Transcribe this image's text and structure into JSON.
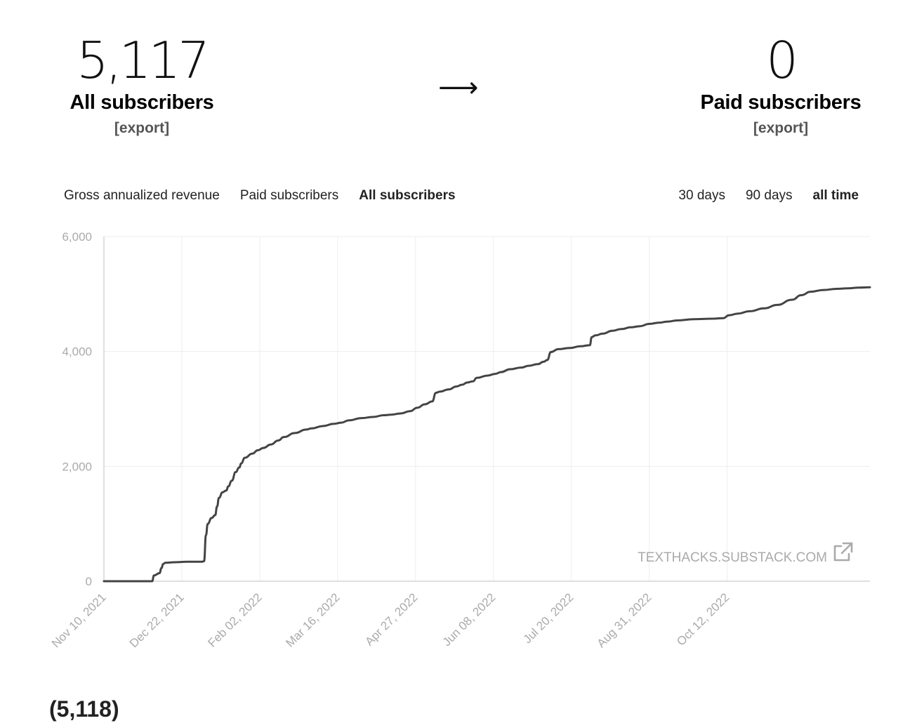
{
  "stats": {
    "all": {
      "value": "5,117",
      "label": "All subscribers",
      "export": "[export]"
    },
    "arrow": "⟶",
    "paid": {
      "value": "0",
      "label": "Paid subscribers",
      "export": "[export]"
    }
  },
  "metric_tabs": [
    "Gross annualized revenue",
    "Paid subscribers",
    "All subscribers"
  ],
  "active_metric": "All subscribers",
  "range_tabs": [
    "30 days",
    "90 days",
    "all time"
  ],
  "active_range": "all time",
  "watermark": "TEXTHACKS.SUBSTACK.COM",
  "watermark_icon": "external-link-icon",
  "footer_partial": "(5,118)",
  "colors": {
    "line": "#444444",
    "grid": "#eeeeee",
    "axis": "#cccccc",
    "tick": "#aaaaaa",
    "watermark": "#aaaaaa"
  },
  "chart_data": {
    "type": "line",
    "title": "",
    "xlabel": "",
    "ylabel": "",
    "ylim": [
      0,
      6000
    ],
    "yticks": [
      0,
      2000,
      4000,
      6000
    ],
    "ytick_labels": [
      "0",
      "2,000",
      "4,000",
      "6,000"
    ],
    "xlim": [
      "2021-11-10",
      "2022-12-28"
    ],
    "xtick_labels": [
      "Nov 10, 2021",
      "Dec 22, 2021",
      "Feb 02, 2022",
      "Mar 16, 2022",
      "Apr 27, 2022",
      "Jun 08, 2022",
      "Jul 20, 2022",
      "Aug 31, 2022",
      "Oct 12, 2022"
    ],
    "grid": true,
    "series": [
      {
        "x": [
          "2021-11-10",
          "2021-12-06",
          "2021-12-07",
          "2021-12-10",
          "2021-12-11",
          "2021-12-12",
          "2021-12-13",
          "2021-12-18",
          "2021-12-25",
          "2022-01-02",
          "2022-01-03",
          "2022-01-04",
          "2022-01-05",
          "2022-01-07",
          "2022-01-09",
          "2022-01-10",
          "2022-01-11",
          "2022-01-13",
          "2022-01-15",
          "2022-01-16",
          "2022-01-18",
          "2022-01-20",
          "2022-01-22",
          "2022-01-23",
          "2022-01-25",
          "2022-01-29",
          "2022-02-01",
          "2022-02-04",
          "2022-02-08",
          "2022-02-12",
          "2022-02-15",
          "2022-02-21",
          "2022-02-27",
          "2022-03-02",
          "2022-03-08",
          "2022-03-14",
          "2022-03-18",
          "2022-03-22",
          "2022-03-29",
          "2022-04-04",
          "2022-04-10",
          "2022-04-14",
          "2022-04-19",
          "2022-04-24",
          "2022-04-28",
          "2022-05-02",
          "2022-05-06",
          "2022-05-08",
          "2022-05-10",
          "2022-05-15",
          "2022-05-19",
          "2022-05-22",
          "2022-05-25",
          "2022-05-28",
          "2022-05-30",
          "2022-06-05",
          "2022-06-09",
          "2022-06-12",
          "2022-06-17",
          "2022-06-23",
          "2022-06-27",
          "2022-07-02",
          "2022-07-05",
          "2022-07-07",
          "2022-07-09",
          "2022-07-13",
          "2022-07-19",
          "2022-07-25",
          "2022-07-30",
          "2022-07-31",
          "2022-08-02",
          "2022-08-06",
          "2022-08-11",
          "2022-08-16",
          "2022-08-21",
          "2022-08-26",
          "2022-08-31",
          "2022-09-05",
          "2022-09-10",
          "2022-09-15",
          "2022-09-24",
          "2022-10-04",
          "2022-10-10",
          "2022-10-13",
          "2022-10-18",
          "2022-10-24",
          "2022-11-01",
          "2022-11-08",
          "2022-11-16",
          "2022-11-21",
          "2022-11-26",
          "2022-12-03",
          "2022-12-10",
          "2022-12-16",
          "2022-12-22",
          "2022-12-28"
        ],
        "y": [
          0,
          0,
          100,
          140,
          230,
          300,
          320,
          330,
          340,
          340,
          350,
          800,
          1000,
          1100,
          1150,
          1300,
          1450,
          1550,
          1580,
          1650,
          1750,
          1900,
          1980,
          2050,
          2150,
          2220,
          2280,
          2320,
          2380,
          2450,
          2510,
          2580,
          2640,
          2660,
          2700,
          2740,
          2760,
          2800,
          2840,
          2860,
          2890,
          2900,
          2920,
          2960,
          3020,
          3080,
          3130,
          3280,
          3300,
          3340,
          3390,
          3420,
          3460,
          3480,
          3540,
          3580,
          3610,
          3640,
          3690,
          3720,
          3750,
          3780,
          3820,
          3850,
          3990,
          4040,
          4060,
          4090,
          4110,
          4250,
          4280,
          4310,
          4360,
          4390,
          4420,
          4440,
          4480,
          4500,
          4520,
          4540,
          4560,
          4570,
          4580,
          4630,
          4660,
          4700,
          4750,
          4810,
          4900,
          4980,
          5040,
          5070,
          5090,
          5100,
          5110,
          5117
        ]
      }
    ]
  }
}
